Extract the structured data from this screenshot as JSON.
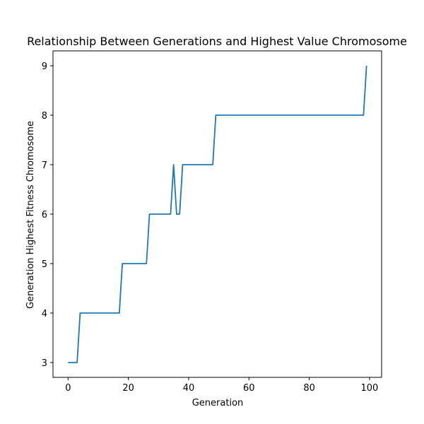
{
  "chart_data": {
    "type": "line",
    "title": "Relationship Between Generations and Highest Value Chromosome",
    "xlabel": "Generation",
    "ylabel": "Generation Highest Fitness Chromosome",
    "xlim": [
      -5,
      104
    ],
    "ylim": [
      2.7,
      9.3
    ],
    "x_ticks": [
      0,
      20,
      40,
      60,
      80,
      100
    ],
    "y_ticks": [
      3,
      4,
      5,
      6,
      7,
      8,
      9
    ],
    "grid": false,
    "legend": "none",
    "series": [
      {
        "color": "#1f77b4",
        "x": [
          0,
          3,
          4,
          17,
          18,
          26,
          27,
          34,
          35,
          36,
          37,
          38,
          48,
          49,
          98,
          99
        ],
        "y": [
          3,
          3,
          4,
          4,
          5,
          5,
          6,
          6,
          7,
          6,
          6,
          7,
          7,
          8,
          8,
          9
        ]
      }
    ]
  }
}
